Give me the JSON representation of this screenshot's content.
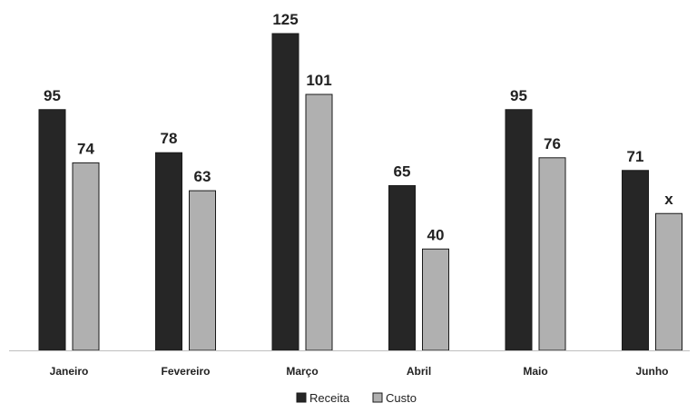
{
  "chart_data": {
    "type": "bar",
    "categories": [
      "Janeiro",
      "Fevereiro",
      "Março",
      "Abril",
      "Maio",
      "Junho"
    ],
    "series": [
      {
        "name": "Receita",
        "color": "#262626",
        "values": [
          95,
          78,
          125,
          65,
          95,
          71
        ],
        "labels": [
          "95",
          "78",
          "125",
          "65",
          "95",
          "71"
        ]
      },
      {
        "name": "Custo",
        "color": "#b0b0b0",
        "values": [
          74,
          63,
          101,
          40,
          76,
          54
        ],
        "labels": [
          "74",
          "63",
          "101",
          "40",
          "76",
          "x"
        ]
      }
    ],
    "ylim": [
      0,
      125
    ],
    "grid": false,
    "legend_position": "bottom-center"
  }
}
